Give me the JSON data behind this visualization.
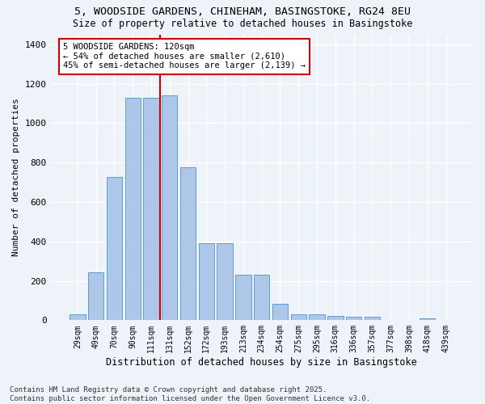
{
  "title_line1": "5, WOODSIDE GARDENS, CHINEHAM, BASINGSTOKE, RG24 8EU",
  "title_line2": "Size of property relative to detached houses in Basingstoke",
  "xlabel": "Distribution of detached houses by size in Basingstoke",
  "ylabel": "Number of detached properties",
  "categories": [
    "29sqm",
    "49sqm",
    "70sqm",
    "90sqm",
    "111sqm",
    "131sqm",
    "152sqm",
    "172sqm",
    "193sqm",
    "213sqm",
    "234sqm",
    "254sqm",
    "275sqm",
    "295sqm",
    "316sqm",
    "336sqm",
    "357sqm",
    "377sqm",
    "398sqm",
    "418sqm",
    "439sqm"
  ],
  "values": [
    30,
    245,
    725,
    1130,
    1130,
    1140,
    775,
    390,
    390,
    230,
    230,
    85,
    30,
    30,
    22,
    18,
    18,
    0,
    0,
    8,
    0
  ],
  "bar_color": "#aec6e8",
  "bar_edge_color": "#5a9fd4",
  "bg_color": "#eef3fa",
  "grid_color": "#ffffff",
  "vline_x": 4.5,
  "vline_color": "#cc0000",
  "annotation_text": "5 WOODSIDE GARDENS: 120sqm\n← 54% of detached houses are smaller (2,610)\n45% of semi-detached houses are larger (2,139) →",
  "annotation_box_color": "#ffffff",
  "annotation_box_edge": "#cc0000",
  "footnote": "Contains HM Land Registry data © Crown copyright and database right 2025.\nContains public sector information licensed under the Open Government Licence v3.0.",
  "ylim": [
    0,
    1450
  ],
  "yticks": [
    0,
    200,
    400,
    600,
    800,
    1000,
    1200,
    1400
  ]
}
